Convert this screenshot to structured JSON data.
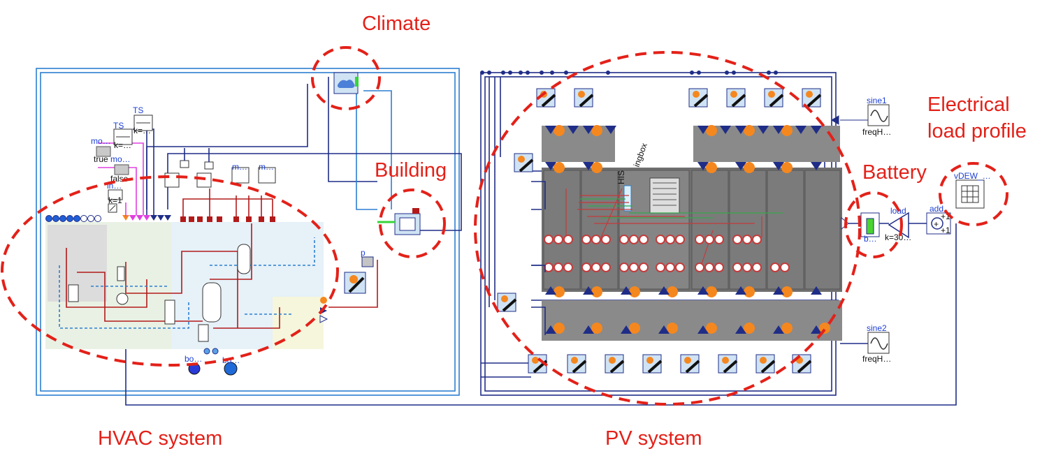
{
  "regions": {
    "climate": "Climate",
    "building": "Building",
    "hvac": "HVAC system",
    "pv": "PV system",
    "battery": "Battery",
    "load_line1": "Electrical",
    "load_line2": "load profile"
  },
  "components": {
    "ts1_name": "TS",
    "ts1_k": "k=…",
    "ts2_name": "TS",
    "ts2_k": "k=…",
    "mo1_name": "mo…",
    "mo1_value": "true",
    "mo2_name": "mo…",
    "mo2_value": "false",
    "in_name": "in…",
    "in_k": "k=1",
    "m1_name": "m…",
    "m2_name": "m…",
    "p_name": "p",
    "bo1_name": "bo…",
    "bo2_name": "bo…",
    "sine1_name": "sine1",
    "sine1_param": "freqH…",
    "sine2_name": "sine2",
    "sine2_param": "freqH…",
    "battery_name": "b…",
    "load_name": "load",
    "load_k": "k=30…",
    "add_name": "add",
    "add_plus1": "+1",
    "add_plus2": "+1",
    "vdew_name": "vDEW_…",
    "his_label": "HIS",
    "ingbox_label": "ingbox"
  },
  "colors": {
    "annotation_red": "#e32119",
    "wire_dark_blue": "#1f2d87",
    "wire_light_blue": "#2c7fd0",
    "hot_water_red": "#b21a1a",
    "signal_magenta": "#e040e0",
    "sensor_orange": "#f5871f",
    "battery_green": "#4bd430"
  },
  "icons": [
    "weather-icon",
    "building-icon",
    "pump-icon",
    "boundary-icon",
    "sine-source-icon",
    "battery-icon",
    "gain-icon",
    "adder-icon",
    "table-icon",
    "pv-panel-icon",
    "inverter-icon"
  ]
}
